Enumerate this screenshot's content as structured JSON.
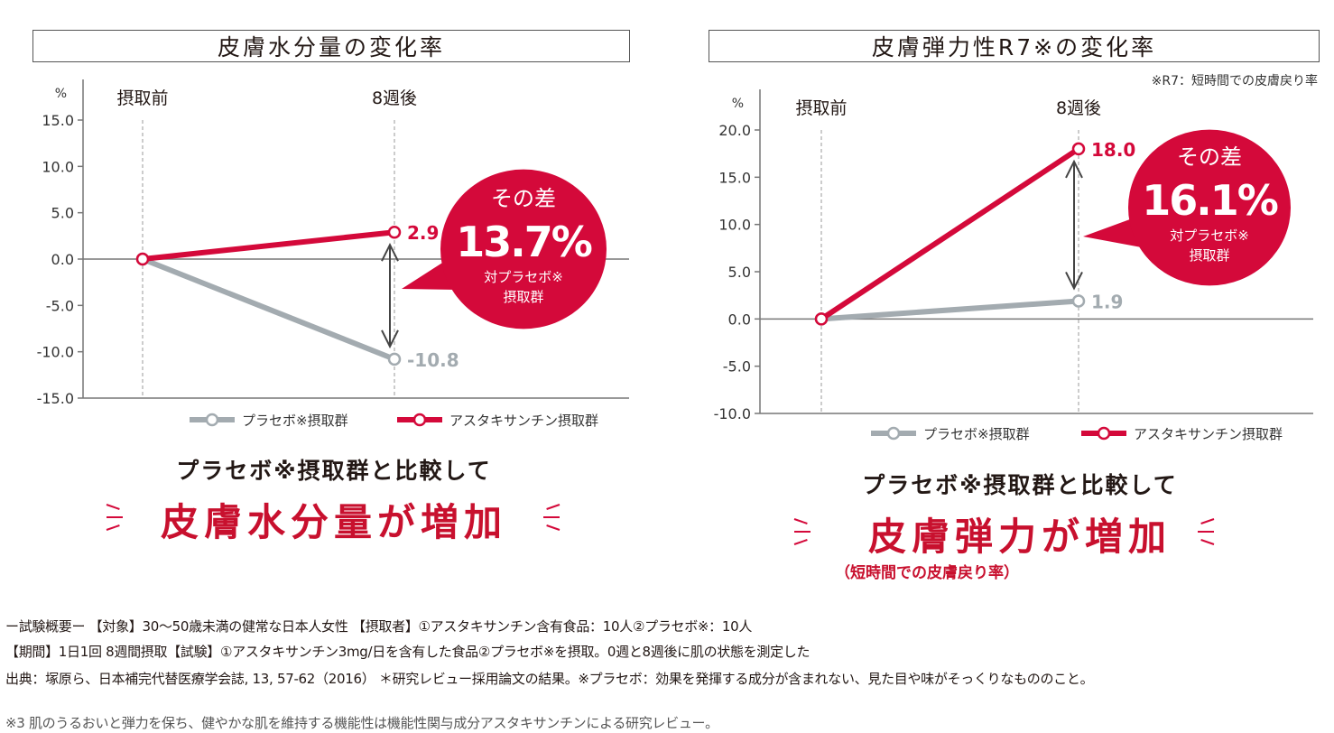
{
  "colors": {
    "placebo": "#a3abb0",
    "astaxanthin": "#d4093a",
    "axis": "#777777",
    "bubble": "#d4093a"
  },
  "chart_data": [
    {
      "type": "line",
      "title": "皮膚水分量の変化率",
      "ylabel": "%",
      "categories": [
        "摂取前",
        "8週後"
      ],
      "ylim": [
        -15,
        15
      ],
      "yticks": [
        "15.0",
        "10.0",
        "5.0",
        "0.0",
        "-5.0",
        "-10.0",
        "-15.0"
      ],
      "series": [
        {
          "name": "プラセボ※摂取群",
          "values": [
            0,
            -10.8
          ],
          "end_label": "-10.8"
        },
        {
          "name": "アスタキサンチン摂取群",
          "values": [
            0,
            2.9
          ],
          "end_label": "2.9"
        }
      ],
      "bubble": {
        "top": "その差",
        "value": "13.7%",
        "bottom_line1": "対プラセボ※",
        "bottom_line2": "摂取群"
      },
      "legend": "bottom-right"
    },
    {
      "type": "line",
      "title": "皮膚弾力性R7※の変化率",
      "note": "※R7：短時間での皮膚戻り率",
      "ylabel": "%",
      "categories": [
        "摂取前",
        "8週後"
      ],
      "ylim": [
        -10,
        20
      ],
      "yticks": [
        "20.0",
        "15.0",
        "10.0",
        "5.0",
        "0.0",
        "-5.0",
        "-10.0"
      ],
      "series": [
        {
          "name": "プラセボ※摂取群",
          "values": [
            0,
            1.9
          ],
          "end_label": "1.9"
        },
        {
          "name": "アスタキサンチン摂取群",
          "values": [
            0,
            18.0
          ],
          "end_label": "18.0"
        }
      ],
      "bubble": {
        "top": "その差",
        "value": "16.1%",
        "bottom_line1": "対プラセボ※",
        "bottom_line2": "摂取群"
      },
      "legend": "bottom-right"
    }
  ],
  "summaries": [
    {
      "compare": "プラセボ※摂取群と比較して",
      "headline": "皮膚水分量が増加"
    },
    {
      "compare": "プラセボ※摂取群と比較して",
      "headline": "皮膚弾力が増加",
      "sub": "（短時間での皮膚戻り率）"
    }
  ],
  "footer": {
    "line1": "ー試験概要ー 【対象】30～50歳未満の健常な日本人女性 【摂取者】①アスタキサンチン含有食品：10人②プラセボ※：10人",
    "line2": "【期間】1日1回 8週間摂取【試験】①アスタキサンチン3mg/日を含有した食品②プラセボ※を摂取。0週と8週後に肌の状態を測定した",
    "line3": "出典：塚原ら、日本補完代替医療学会誌, 13, 57-62（2016） ＊研究レビュー採用論文の結果。※プラセボ：効果を発揮する成分が含まれない、見た目や味がそっくりなもののこと。",
    "line4": "※3 肌のうるおいと弾力を保ち、健やかな肌を維持する機能性は機能性関与成分アスタキサンチンによる研究レビュー。"
  }
}
